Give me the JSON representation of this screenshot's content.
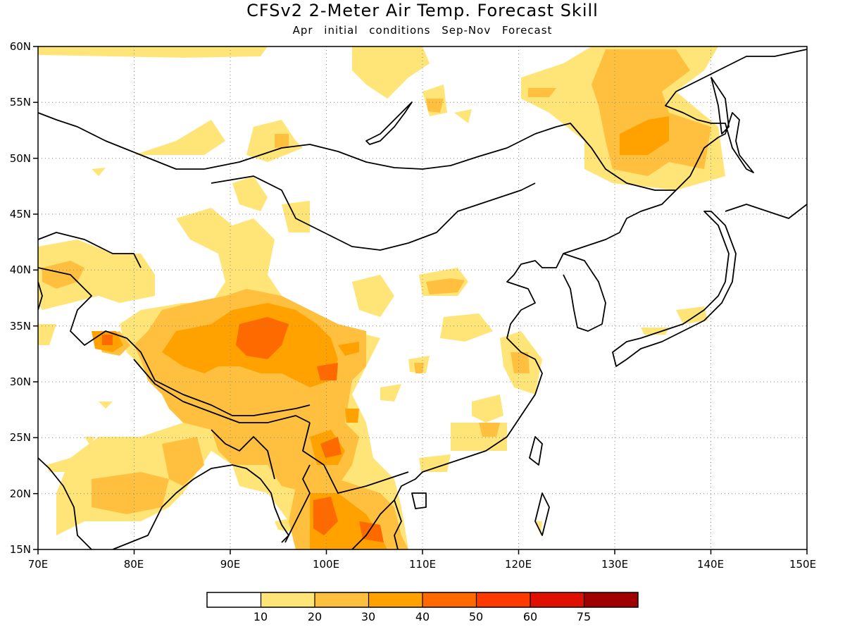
{
  "title": "CFSv2 2-Meter Air Temp. Forecast Skill",
  "subtitle": "Apr initial conditions  Sep-Nov Forecast",
  "map": {
    "lon_range": [
      70,
      150
    ],
    "lat_range": [
      15,
      60
    ],
    "lat_labels": [
      "60N",
      "55N",
      "50N",
      "45N",
      "40N",
      "35N",
      "30N",
      "25N",
      "20N",
      "15N"
    ],
    "lon_labels": [
      "70E",
      "80E",
      "90E",
      "100E",
      "110E",
      "120E",
      "130E",
      "140E",
      "150E"
    ],
    "grid": "dotted"
  },
  "colorbar": {
    "levels": [
      "10",
      "20",
      "30",
      "40",
      "50",
      "60",
      "75"
    ],
    "colors": [
      "#ffffff",
      "#ffe477",
      "#ffc040",
      "#ffa200",
      "#ff6a00",
      "#ff3a00",
      "#e01000",
      "#a00000"
    ]
  }
}
